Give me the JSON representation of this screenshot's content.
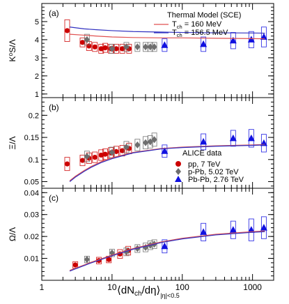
{
  "colors": {
    "pp": "#cc0000",
    "ppb": "#6e6e6e",
    "pbpb": "#1010e0",
    "model_160": "#e05050",
    "model_1565": "#3030c0",
    "frame": "#000000"
  },
  "x_axis": {
    "label_main": "⟨dN",
    "label_ch": "ch",
    "label_mid": "/dη⟩",
    "label_sub": "|η|<0.5",
    "scale": "log",
    "range": [
      1,
      2000
    ],
    "tick_labels": [
      "1",
      "10",
      "100",
      "1000"
    ]
  },
  "legends": {
    "model_title": "Thermal Model (SCE)",
    "model_entries": [
      {
        "prefix": "T",
        "sub": "ch",
        "text": " = 160  MeV",
        "color_key": "model_160"
      },
      {
        "prefix": "T",
        "sub": "ch",
        "text": " = 156.5 MeV",
        "color_key": "model_1565"
      }
    ],
    "data_title": "ALICE data",
    "data_entries": [
      {
        "label": "pp, 7 TeV",
        "marker": "circle",
        "color_key": "pp"
      },
      {
        "label": "p-Pb, 5.02 TeV",
        "marker": "diamond",
        "color_key": "ppb"
      },
      {
        "label": "Pb-Pb, 2.76 TeV",
        "marker": "triangle",
        "color_key": "pbpb"
      }
    ]
  },
  "chart_data": [
    {
      "type": "scatter",
      "panel_label": "(a)",
      "ylabel": "K⁰S/Λ",
      "ylim": [
        0.8,
        6.0
      ],
      "yticks": [
        1,
        2,
        3,
        4,
        5
      ],
      "ytick_labels": [
        "1",
        "2",
        "3",
        "4",
        "5"
      ],
      "series": [
        {
          "name": "pp, 7 TeV",
          "marker": "circle",
          "color_key": "pp",
          "x": [
            2.3,
            3.8,
            4.7,
            5.7,
            7.0,
            8.0,
            9.6,
            11.5,
            14.0,
            17.5
          ],
          "y": [
            4.5,
            3.85,
            3.65,
            3.6,
            3.5,
            3.55,
            3.5,
            3.5,
            3.5,
            3.5
          ],
          "syst": [
            0.6,
            0.25,
            0.25,
            0.25,
            0.25,
            0.25,
            0.25,
            0.25,
            0.25,
            0.25
          ]
        },
        {
          "name": "p-Pb, 5.02 TeV",
          "marker": "diamond",
          "color_key": "ppb",
          "x": [
            4.4,
            10.0,
            16.0,
            23.0,
            30.0,
            35.0,
            40.0
          ],
          "y": [
            4.0,
            3.5,
            3.6,
            3.6,
            3.6,
            3.6,
            3.6
          ],
          "syst": [
            0.3,
            0.25,
            0.25,
            0.25,
            0.25,
            0.25,
            0.25
          ]
        },
        {
          "name": "Pb-Pb, 2.76 TeV",
          "marker": "triangle",
          "color_key": "pbpb",
          "x": [
            56,
            200,
            530,
            960,
            1450
          ],
          "y": [
            3.7,
            3.75,
            3.95,
            4.0,
            4.15
          ],
          "syst": [
            0.35,
            0.4,
            0.45,
            0.45,
            0.55
          ]
        },
        {
          "name": "T_ch = 160 MeV",
          "line": true,
          "color_key": "model_160",
          "x": [
            2.5,
            4,
            6,
            10,
            20,
            50,
            100,
            300,
            1000,
            1500
          ],
          "y": [
            4.3,
            4.25,
            4.2,
            4.15,
            4.12,
            4.1,
            4.1,
            4.08,
            4.06,
            4.05
          ]
        },
        {
          "name": "T_ch = 156.5 MeV",
          "line": true,
          "color_key": "model_1565",
          "x": [
            2.5,
            4,
            6,
            10,
            20,
            50,
            100,
            300,
            1000,
            1500
          ],
          "y": [
            4.7,
            4.6,
            4.55,
            4.5,
            4.45,
            4.42,
            4.4,
            4.38,
            4.37,
            4.36
          ]
        }
      ]
    },
    {
      "type": "scatter",
      "panel_label": "(b)",
      "ylabel": "Ξ/Λ",
      "ylim": [
        0.035,
        0.24
      ],
      "yticks": [
        0.05,
        0.1,
        0.15,
        0.2
      ],
      "ytick_labels": [
        "0.05",
        "0.1",
        "0.15",
        "0.2"
      ],
      "series": [
        {
          "name": "pp, 7 TeV",
          "marker": "circle",
          "color_key": "pp",
          "x": [
            2.3,
            3.8,
            4.7,
            5.7,
            7.0,
            8.0,
            9.6,
            11.5,
            14.0,
            17.5
          ],
          "y": [
            0.09,
            0.098,
            0.103,
            0.105,
            0.11,
            0.112,
            0.115,
            0.118,
            0.12,
            0.125
          ],
          "syst": [
            0.015,
            0.012,
            0.012,
            0.012,
            0.012,
            0.012,
            0.012,
            0.012,
            0.012,
            0.012
          ]
        },
        {
          "name": "p-Pb, 5.02 TeV",
          "marker": "diamond",
          "color_key": "ppb",
          "x": [
            4.4,
            10.0,
            16.0,
            23.0,
            30.0,
            35.0,
            40.0
          ],
          "y": [
            0.107,
            0.116,
            0.128,
            0.133,
            0.138,
            0.14,
            0.145
          ],
          "syst": [
            0.012,
            0.012,
            0.013,
            0.013,
            0.014,
            0.014,
            0.015
          ]
        },
        {
          "name": "Pb-Pb, 2.76 TeV",
          "marker": "triangle",
          "color_key": "pbpb",
          "x": [
            56,
            200,
            530,
            960,
            1450
          ],
          "y": [
            0.119,
            0.14,
            0.148,
            0.148,
            0.137
          ],
          "syst": [
            0.014,
            0.018,
            0.018,
            0.02,
            0.02
          ]
        },
        {
          "name": "T_ch = 160 MeV",
          "line": true,
          "color_key": "model_160",
          "x": [
            2.5,
            3,
            4,
            5,
            7,
            10,
            20,
            50,
            100,
            300,
            1000,
            1500
          ],
          "y": [
            0.052,
            0.062,
            0.075,
            0.084,
            0.095,
            0.104,
            0.116,
            0.125,
            0.128,
            0.131,
            0.133,
            0.134
          ]
        },
        {
          "name": "T_ch = 156.5 MeV",
          "line": true,
          "color_key": "model_1565",
          "x": [
            2.5,
            3,
            4,
            5,
            7,
            10,
            20,
            50,
            100,
            300,
            1000,
            1500
          ],
          "y": [
            0.05,
            0.06,
            0.073,
            0.082,
            0.093,
            0.102,
            0.115,
            0.124,
            0.127,
            0.13,
            0.132,
            0.133
          ]
        }
      ]
    },
    {
      "type": "scatter",
      "panel_label": "(c)",
      "ylabel": "Ω/Λ",
      "ylim": [
        0,
        0.042
      ],
      "yticks": [
        0.01,
        0.02,
        0.03,
        0.04
      ],
      "ytick_labels": [
        "0.01",
        "0.02",
        "0.03",
        "0.04"
      ],
      "series": [
        {
          "name": "pp, 7 TeV",
          "marker": "circle",
          "color_key": "pp",
          "x": [
            3.0,
            6.5,
            9.0,
            13.0,
            17.0
          ],
          "y": [
            0.007,
            0.009,
            0.0095,
            0.012,
            0.0135
          ],
          "syst": [
            0.0015,
            0.0015,
            0.0015,
            0.002,
            0.002
          ]
        },
        {
          "name": "p-Pb, 5.02 TeV",
          "marker": "diamond",
          "color_key": "ppb",
          "x": [
            4.4,
            10.0,
            16.0,
            23.0,
            30.0,
            35.0,
            40.0
          ],
          "y": [
            0.0095,
            0.0125,
            0.013,
            0.0145,
            0.015,
            0.016,
            0.0165
          ],
          "syst": [
            0.0015,
            0.0017,
            0.0018,
            0.0018,
            0.002,
            0.002,
            0.002
          ]
        },
        {
          "name": "Pb-Pb, 2.76 TeV",
          "marker": "triangle",
          "color_key": "pbpb",
          "x": [
            56,
            200,
            530,
            960,
            1450
          ],
          "y": [
            0.0155,
            0.022,
            0.023,
            0.023,
            0.024
          ],
          "syst": [
            0.003,
            0.004,
            0.004,
            0.005,
            0.005
          ]
        },
        {
          "name": "T_ch = 160 MeV",
          "line": true,
          "color_key": "model_160",
          "x": [
            2.5,
            3,
            4,
            5,
            7,
            10,
            20,
            50,
            100,
            300,
            1000,
            1500
          ],
          "y": [
            0.0045,
            0.0055,
            0.007,
            0.0082,
            0.0098,
            0.0115,
            0.0145,
            0.0175,
            0.0192,
            0.021,
            0.0222,
            0.0225
          ]
        },
        {
          "name": "T_ch = 156.5 MeV",
          "line": true,
          "color_key": "model_1565",
          "x": [
            2.5,
            3,
            4,
            5,
            7,
            10,
            20,
            50,
            100,
            300,
            1000,
            1500
          ],
          "y": [
            0.0042,
            0.0052,
            0.0067,
            0.0079,
            0.0095,
            0.0112,
            0.0142,
            0.0172,
            0.0189,
            0.0207,
            0.0219,
            0.0222
          ]
        }
      ]
    }
  ]
}
